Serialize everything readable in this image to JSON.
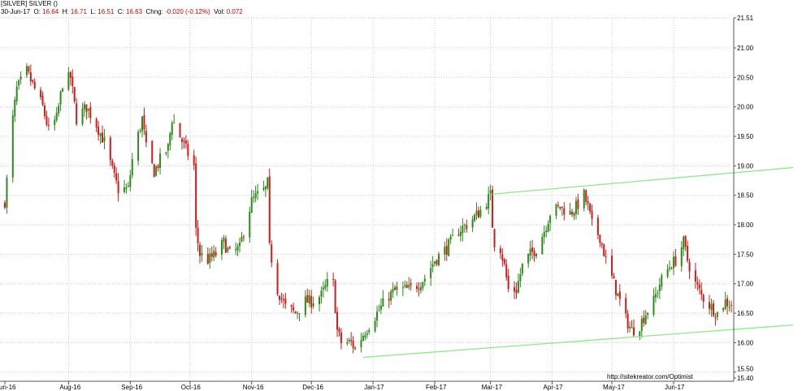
{
  "header": {
    "title": "[SILVER] SILVER ()",
    "date": "30-Jun-17",
    "o_label": "O:",
    "o_value": "16.64",
    "h_label": "H:",
    "h_value": "16.71",
    "l_label": "L:",
    "l_value": "16.51",
    "c_label": "C:",
    "c_value": "16.63",
    "chng_label": "Chng:",
    "chng_value": "-0.020 (-0.12%)",
    "vol_label": "Vol:",
    "vol_value": "0.072"
  },
  "watermark": "http://sitekreator.com/Optimist",
  "colors": {
    "up": "#2a8a1a",
    "down": "#d11a1a",
    "trendline": "#8ee88a",
    "grid": "#c8c8c8",
    "axis": "#555555",
    "value": "#cc0000"
  },
  "chart_data": {
    "type": "candlestick",
    "title": "[SILVER] SILVER ()",
    "ylim": [
      15.4,
      21.51
    ],
    "y_ticks": [
      "15.40",
      "15.50",
      "16.00",
      "16.50",
      "17.00",
      "17.50",
      "18.00",
      "18.50",
      "19.00",
      "19.50",
      "20.00",
      "20.50",
      "21.00",
      "21.51"
    ],
    "x_ticks": [
      "Jun-16",
      "Aug-16",
      "Sep-16",
      "Oct-16",
      "Nov-16",
      "Dec-16",
      "Jan-17",
      "Feb-17",
      "Mar-17",
      "Apr-17",
      "May-17",
      "Jun-17"
    ],
    "grid": true,
    "price_path": [
      [
        "2016-06-30",
        18.4
      ],
      [
        "2016-07-04",
        19.8
      ],
      [
        "2016-07-06",
        20.3
      ],
      [
        "2016-07-11",
        20.6
      ],
      [
        "2016-07-15",
        20.3
      ],
      [
        "2016-07-19",
        20.0
      ],
      [
        "2016-07-22",
        19.6
      ],
      [
        "2016-07-26",
        19.8
      ],
      [
        "2016-07-29",
        20.4
      ],
      [
        "2016-08-02",
        20.5
      ],
      [
        "2016-08-05",
        19.8
      ],
      [
        "2016-08-10",
        20.0
      ],
      [
        "2016-08-15",
        19.7
      ],
      [
        "2016-08-19",
        19.4
      ],
      [
        "2016-08-24",
        18.8
      ],
      [
        "2016-08-26",
        18.6
      ],
      [
        "2016-08-31",
        18.6
      ],
      [
        "2016-09-02",
        19.1
      ],
      [
        "2016-09-07",
        19.8
      ],
      [
        "2016-09-09",
        19.3
      ],
      [
        "2016-09-13",
        18.9
      ],
      [
        "2016-09-16",
        19.1
      ],
      [
        "2016-09-20",
        19.3
      ],
      [
        "2016-09-22",
        19.8
      ],
      [
        "2016-09-26",
        19.5
      ],
      [
        "2016-09-30",
        19.2
      ],
      [
        "2016-10-03",
        19.0
      ],
      [
        "2016-10-04",
        17.9
      ],
      [
        "2016-10-06",
        17.5
      ],
      [
        "2016-10-10",
        17.4
      ],
      [
        "2016-10-14",
        17.5
      ],
      [
        "2016-10-18",
        17.7
      ],
      [
        "2016-10-21",
        17.5
      ],
      [
        "2016-10-26",
        17.6
      ],
      [
        "2016-10-28",
        17.9
      ],
      [
        "2016-11-01",
        18.4
      ],
      [
        "2016-11-04",
        18.5
      ],
      [
        "2016-11-08",
        18.6
      ],
      [
        "2016-11-09",
        18.7
      ],
      [
        "2016-11-10",
        17.6
      ],
      [
        "2016-11-14",
        16.9
      ],
      [
        "2016-11-18",
        16.6
      ],
      [
        "2016-11-23",
        16.5
      ],
      [
        "2016-11-28",
        16.7
      ],
      [
        "2016-12-01",
        16.7
      ],
      [
        "2016-12-06",
        16.8
      ],
      [
        "2016-12-09",
        17.0
      ],
      [
        "2016-12-12",
        17.0
      ],
      [
        "2016-12-14",
        16.2
      ],
      [
        "2016-12-16",
        16.0
      ],
      [
        "2016-12-21",
        16.0
      ],
      [
        "2016-12-23",
        15.9
      ],
      [
        "2016-12-28",
        16.2
      ],
      [
        "2017-01-03",
        16.5
      ],
      [
        "2017-01-09",
        16.8
      ],
      [
        "2017-01-13",
        16.9
      ],
      [
        "2017-01-19",
        16.9
      ],
      [
        "2017-01-24",
        17.0
      ],
      [
        "2017-01-27",
        17.1
      ],
      [
        "2017-02-01",
        17.4
      ],
      [
        "2017-02-07",
        17.6
      ],
      [
        "2017-02-13",
        17.9
      ],
      [
        "2017-02-17",
        18.0
      ],
      [
        "2017-02-23",
        18.2
      ],
      [
        "2017-02-27",
        18.4
      ],
      [
        "2017-03-01",
        18.5
      ],
      [
        "2017-03-02",
        18.0
      ],
      [
        "2017-03-03",
        17.7
      ],
      [
        "2017-03-06",
        17.6
      ],
      [
        "2017-03-08",
        17.3
      ],
      [
        "2017-03-10",
        16.9
      ],
      [
        "2017-03-14",
        16.9
      ],
      [
        "2017-03-17",
        17.3
      ],
      [
        "2017-03-21",
        17.5
      ],
      [
        "2017-03-24",
        17.6
      ],
      [
        "2017-03-28",
        17.9
      ],
      [
        "2017-03-31",
        18.2
      ],
      [
        "2017-04-05",
        18.3
      ],
      [
        "2017-04-10",
        18.2
      ],
      [
        "2017-04-13",
        18.3
      ],
      [
        "2017-04-17",
        18.5
      ],
      [
        "2017-04-19",
        18.3
      ],
      [
        "2017-04-21",
        18.0
      ],
      [
        "2017-04-25",
        17.8
      ],
      [
        "2017-04-28",
        17.4
      ],
      [
        "2017-05-02",
        17.0
      ],
      [
        "2017-05-04",
        16.8
      ],
      [
        "2017-05-08",
        16.4
      ],
      [
        "2017-05-11",
        16.2
      ],
      [
        "2017-05-15",
        16.3
      ],
      [
        "2017-05-18",
        16.5
      ],
      [
        "2017-05-22",
        16.7
      ],
      [
        "2017-05-25",
        17.0
      ],
      [
        "2017-05-30",
        17.3
      ],
      [
        "2017-06-02",
        17.4
      ],
      [
        "2017-06-06",
        17.7
      ],
      [
        "2017-06-08",
        17.4
      ],
      [
        "2017-06-12",
        17.0
      ],
      [
        "2017-06-15",
        16.8
      ],
      [
        "2017-06-20",
        16.6
      ],
      [
        "2017-06-23",
        16.5
      ],
      [
        "2017-06-27",
        16.7
      ],
      [
        "2017-06-30",
        16.63
      ]
    ],
    "trendlines": [
      {
        "start": [
          "2017-03-02",
          18.52
        ],
        "end": [
          "2017-07-31",
          18.97
        ]
      },
      {
        "start": [
          "2016-12-27",
          15.75
        ],
        "end": [
          "2017-07-31",
          16.3
        ]
      }
    ]
  }
}
